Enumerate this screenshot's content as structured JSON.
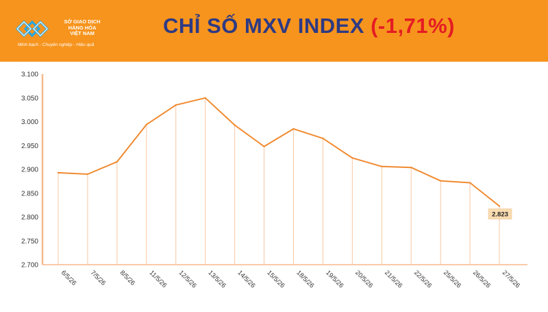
{
  "header": {
    "logo": {
      "name_lines": [
        "SỞ GIAO DỊCH",
        "HÀNG HÓA",
        "VIỆT NAM"
      ],
      "slogan": "Minh bạch - Chuyên nghiệp - Hiệu quả"
    },
    "title_main": "CHỈ SỐ MXV INDEX",
    "title_change": "(-1,71%)",
    "colors": {
      "bar": "#f7941d",
      "title": "#2e3a83",
      "change": "#e41c23"
    }
  },
  "chart_data": {
    "type": "line",
    "x": [
      "6/5/26",
      "7/5/26",
      "8/5/26",
      "11/5/26",
      "12/5/26",
      "13/5/26",
      "14/5/26",
      "15/5/26",
      "18/5/26",
      "19/5/26",
      "20/5/26",
      "21/5/26",
      "22/5/26",
      "25/5/26",
      "26/5/26",
      "27/5/26"
    ],
    "series": [
      {
        "values": [
          2893,
          2890,
          2916,
          2994,
          3035,
          3050,
          2993,
          2948,
          2985,
          2965,
          2924,
          2906,
          2904,
          2876,
          2872,
          2823
        ],
        "color": "#f08a30"
      }
    ],
    "ylim": [
      2700,
      3100
    ],
    "yticks": [
      2700,
      2750,
      2800,
      2850,
      2900,
      2950,
      3000,
      3050,
      3100
    ],
    "ytick_labels": [
      "2.700",
      "2.750",
      "2.800",
      "2.850",
      "2.900",
      "2.950",
      "3.000",
      "3.050",
      "3.100"
    ],
    "last_label": "2.823",
    "drop_lines": true,
    "grid": false
  }
}
